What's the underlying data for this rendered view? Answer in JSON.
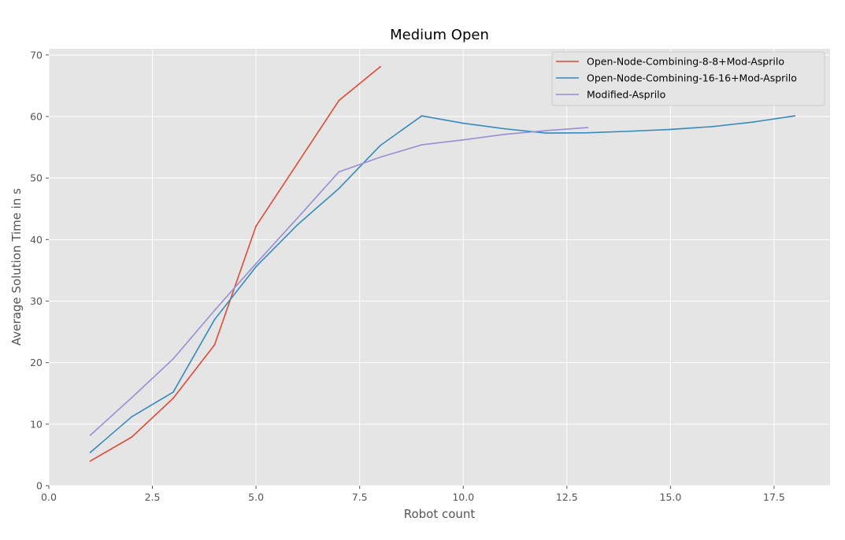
{
  "chart_data": {
    "type": "line",
    "title": "Medium Open",
    "xlabel": "Robot count",
    "ylabel": "Average Solution Time in s",
    "xlim": [
      0,
      18.85
    ],
    "ylim": [
      0,
      71
    ],
    "xticks": [
      0,
      2.5,
      5,
      7.5,
      10,
      12.5,
      15,
      17.5
    ],
    "xtick_labels": [
      "0.0",
      "2.5",
      "5.0",
      "7.5",
      "10.0",
      "12.5",
      "15.0",
      "17.5"
    ],
    "yticks": [
      0,
      10,
      20,
      30,
      40,
      50,
      60,
      70
    ],
    "ytick_labels": [
      "0",
      "10",
      "20",
      "30",
      "40",
      "50",
      "60",
      "70"
    ],
    "grid": true,
    "legend_position": "top-right",
    "series": [
      {
        "name": "Open-Node-Combining-8-8+Mod-Asprilo",
        "color": "#E24A33",
        "x": [
          1,
          2,
          3,
          4,
          5,
          6,
          7,
          8
        ],
        "y": [
          4.0,
          7.9,
          14.2,
          22.9,
          42.2,
          52.4,
          62.6,
          68.1
        ]
      },
      {
        "name": "Open-Node-Combining-16-16+Mod-Asprilo",
        "color": "#348ABD",
        "x": [
          1,
          2,
          3,
          4,
          5,
          6,
          7,
          8,
          9,
          10,
          11,
          12,
          13,
          14,
          15,
          16,
          17,
          18
        ],
        "y": [
          5.4,
          11.2,
          15.2,
          27.0,
          35.6,
          42.4,
          48.3,
          55.3,
          60.1,
          58.9,
          58.0,
          57.3,
          57.35,
          57.6,
          57.9,
          58.35,
          59.1,
          60.1
        ]
      },
      {
        "name": "Modified-Asprilo",
        "color": "#988ED5",
        "x": [
          1,
          2,
          3,
          4,
          5,
          6,
          7,
          8,
          9,
          10,
          11,
          12,
          13
        ],
        "y": [
          8.2,
          14.3,
          20.6,
          28.5,
          36.1,
          43.5,
          51.0,
          53.4,
          55.4,
          56.2,
          57.1,
          57.7,
          58.2
        ]
      }
    ]
  }
}
